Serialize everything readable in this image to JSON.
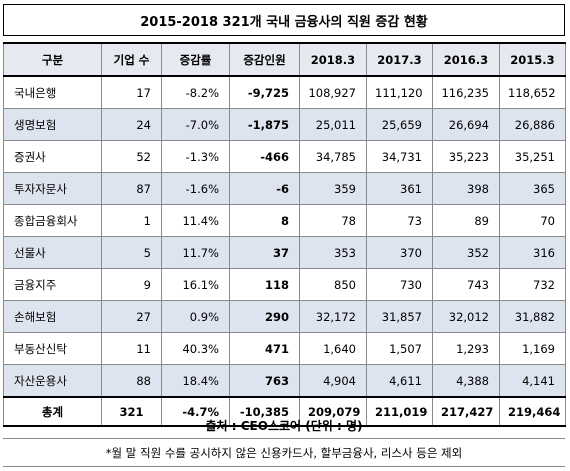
{
  "title": "2015-2018 321개 국내 금융사의 직원 증감 현황",
  "columns": [
    "구분",
    "기업 수",
    "증감률",
    "증감인원",
    "2018.3",
    "2017.3",
    "2016.3",
    "2015.3"
  ],
  "rows": [
    {
      "name": "국내은행",
      "count": "17",
      "rate": "-8.2%",
      "change": "-9,725",
      "y2018": "108,927",
      "y2017": "111,120",
      "y2016": "116,235",
      "y2015": "118,652"
    },
    {
      "name": "생명보험",
      "count": "24",
      "rate": "-7.0%",
      "change": "-1,875",
      "y2018": "25,011",
      "y2017": "25,659",
      "y2016": "26,694",
      "y2015": "26,886"
    },
    {
      "name": "증권사",
      "count": "52",
      "rate": "-1.3%",
      "change": "-466",
      "y2018": "34,785",
      "y2017": "34,731",
      "y2016": "35,223",
      "y2015": "35,251"
    },
    {
      "name": "투자자문사",
      "count": "87",
      "rate": "-1.6%",
      "change": "-6",
      "y2018": "359",
      "y2017": "361",
      "y2016": "398",
      "y2015": "365"
    },
    {
      "name": "종합금융회사",
      "count": "1",
      "rate": "11.4%",
      "change": "8",
      "y2018": "78",
      "y2017": "73",
      "y2016": "89",
      "y2015": "70"
    },
    {
      "name": "선물사",
      "count": "5",
      "rate": "11.7%",
      "change": "37",
      "y2018": "353",
      "y2017": "370",
      "y2016": "352",
      "y2015": "316"
    },
    {
      "name": "금융지주",
      "count": "9",
      "rate": "16.1%",
      "change": "118",
      "y2018": "850",
      "y2017": "730",
      "y2016": "743",
      "y2015": "732"
    },
    {
      "name": "손해보험",
      "count": "27",
      "rate": "0.9%",
      "change": "290",
      "y2018": "32,172",
      "y2017": "31,857",
      "y2016": "32,012",
      "y2015": "31,882"
    },
    {
      "name": "부동산신탁",
      "count": "11",
      "rate": "40.3%",
      "change": "471",
      "y2018": "1,640",
      "y2017": "1,507",
      "y2016": "1,293",
      "y2015": "1,169"
    },
    {
      "name": "자산운용사",
      "count": "88",
      "rate": "18.4%",
      "change": "763",
      "y2018": "4,904",
      "y2017": "4,611",
      "y2016": "4,388",
      "y2015": "4,141"
    }
  ],
  "total": {
    "name": "총계",
    "count": "321",
    "rate": "-4.7%",
    "change": "-10,385",
    "y2018": "209,079",
    "y2017": "211,019",
    "y2016": "217,427",
    "y2015": "219,464"
  },
  "source": "출처 : CEO스코어 (단위 : 명)",
  "note": "*월 말 직원 수를 공시하지 않은 신용카드사, 할부금융사, 리스사 등은 제외",
  "colors": {
    "header_bg": "#e6e9f0",
    "shade_bg": "#dde4f0",
    "border": "#8a8a8a"
  }
}
